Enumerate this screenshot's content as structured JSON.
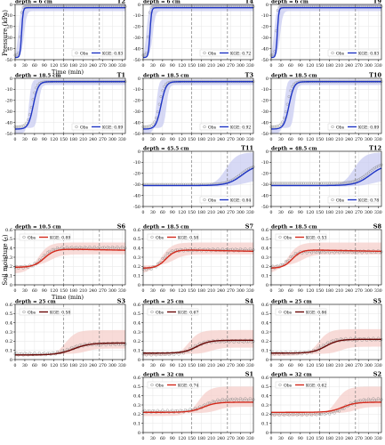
{
  "figure": {
    "pressure_ylabel": "Pressure (kPa)",
    "moisture_ylabel": "Soil moisture (-)",
    "xlabel": "Time (min)",
    "obs_label": "Obs",
    "pressure_line_color": "#1f35c4",
    "pressure_band_color": "#c9ccf2",
    "moisture_line_color": "#d42a1c",
    "moisture_dark_line_color": "#6b0a08",
    "moisture_band_color": "#f6cfcb",
    "obs_color": "#8c8c8c"
  },
  "chart_data": [
    {
      "type": "line",
      "id": "T2",
      "title": "T2",
      "depth": "depth = 6 cm",
      "kge": "KGE: 0.83",
      "line": "pressure",
      "xlim": [
        0,
        340
      ],
      "ylim": [
        -50,
        0
      ],
      "xticks": [
        0,
        30,
        60,
        90,
        120,
        150,
        180,
        210,
        240,
        270,
        300,
        330
      ],
      "yticks": [
        0,
        -10,
        -20,
        -30,
        -40,
        -50
      ],
      "vlines": [
        150,
        260
      ],
      "obs": {
        "start": -46,
        "end": -2,
        "t50": 16,
        "k": 0.5
      },
      "sim": {
        "start": -48,
        "end": -3,
        "t50": 20,
        "k": 0.45
      },
      "band": [
        {
          "start": -50,
          "end": 0,
          "t50": 10
        },
        {
          "start": -47,
          "end": -6,
          "t50": 28
        }
      ],
      "show_xticklabels": true,
      "show_xlabel": true,
      "show_ylabel": true
    },
    {
      "type": "line",
      "id": "T4",
      "title": "T4",
      "depth": "depth = 6 cm",
      "kge": "KGE: 0.72",
      "line": "pressure",
      "xlim": [
        0,
        340
      ],
      "ylim": [
        -50,
        0
      ],
      "xticks": [
        0,
        30,
        60,
        90,
        120,
        150,
        180,
        210,
        240,
        270,
        300,
        330
      ],
      "yticks": [
        0,
        -10,
        -20,
        -30,
        -40,
        -50
      ],
      "vlines": [
        150,
        260
      ],
      "obs": {
        "start": -46,
        "end": -2,
        "t50": 16,
        "k": 0.5
      },
      "sim": {
        "start": -48,
        "end": -3,
        "t50": 21,
        "k": 0.42
      },
      "band": [
        {
          "start": -50,
          "end": 0,
          "t50": 10
        },
        {
          "start": -47,
          "end": -6,
          "t50": 30
        }
      ],
      "show_xticklabels": false
    },
    {
      "type": "line",
      "id": "T9",
      "title": "T9",
      "depth": "depth = 6 cm",
      "kge": "KGE: 0.83",
      "line": "pressure",
      "xlim": [
        0,
        340
      ],
      "ylim": [
        -50,
        0
      ],
      "xticks": [
        0,
        30,
        60,
        90,
        120,
        150,
        180,
        210,
        240,
        270,
        300,
        330
      ],
      "yticks": [
        0,
        -10,
        -20,
        -30,
        -40,
        -50
      ],
      "vlines": [
        150,
        260
      ],
      "obs": {
        "start": -46,
        "end": -2,
        "t50": 15,
        "k": 0.5
      },
      "sim": {
        "start": -48,
        "end": -3,
        "t50": 19,
        "k": 0.45
      },
      "band": [
        {
          "start": -50,
          "end": 0,
          "t50": 9
        },
        {
          "start": -47,
          "end": -6,
          "t50": 28
        }
      ],
      "show_xticklabels": false
    },
    {
      "type": "line",
      "id": "T1",
      "title": "T1",
      "depth": "depth = 18.5 cm",
      "kge": "KGE: 0.89",
      "line": "pressure",
      "xlim": [
        0,
        340
      ],
      "ylim": [
        -50,
        0
      ],
      "xticks": [
        0,
        30,
        60,
        90,
        120,
        150,
        180,
        210,
        240,
        270,
        300,
        330
      ],
      "yticks": [
        0,
        -10,
        -20,
        -30,
        -40,
        -50
      ],
      "vlines": [
        150,
        260
      ],
      "obs": {
        "start": -44,
        "end": -3,
        "t50": 52,
        "k": 0.14
      },
      "sim": {
        "start": -46,
        "end": -3,
        "t50": 56,
        "k": 0.13
      },
      "band": [
        {
          "start": -50,
          "end": -1,
          "t50": 42
        },
        {
          "start": -45,
          "end": -6,
          "t50": 72
        }
      ],
      "show_xticklabels": false,
      "show_ylabel": false
    },
    {
      "type": "line",
      "id": "T3",
      "title": "T3",
      "depth": "depth = 18.5 cm",
      "kge": "KGE: 0.92",
      "line": "pressure",
      "xlim": [
        0,
        340
      ],
      "ylim": [
        -50,
        0
      ],
      "xticks": [
        0,
        30,
        60,
        90,
        120,
        150,
        180,
        210,
        240,
        270,
        300,
        330
      ],
      "yticks": [
        0,
        -10,
        -20,
        -30,
        -40,
        -50
      ],
      "vlines": [
        150,
        260
      ],
      "obs": {
        "start": -44,
        "end": -3,
        "t50": 50,
        "k": 0.14
      },
      "sim": {
        "start": -46,
        "end": -3,
        "t50": 55,
        "k": 0.13
      },
      "band": [
        {
          "start": -50,
          "end": -1,
          "t50": 40
        },
        {
          "start": -45,
          "end": -6,
          "t50": 72
        }
      ],
      "show_xticklabels": false
    },
    {
      "type": "line",
      "id": "T10",
      "title": "T10",
      "depth": "depth = 18.5 cm",
      "kge": "KGE: 0.89",
      "line": "pressure",
      "xlim": [
        0,
        340
      ],
      "ylim": [
        -50,
        0
      ],
      "xticks": [
        0,
        30,
        60,
        90,
        120,
        150,
        180,
        210,
        240,
        270,
        300,
        330
      ],
      "yticks": [
        0,
        -10,
        -20,
        -30,
        -40,
        -50
      ],
      "vlines": [
        150,
        260
      ],
      "obs": {
        "start": -44,
        "end": -3,
        "t50": 50,
        "k": 0.14
      },
      "sim": {
        "start": -46,
        "end": -3,
        "t50": 55,
        "k": 0.13
      },
      "band": [
        {
          "start": -50,
          "end": -1,
          "t50": 40
        },
        {
          "start": -45,
          "end": -6,
          "t50": 72
        }
      ],
      "show_xticklabels": false
    },
    {
      "type": "line",
      "id": "T11",
      "title": "T11",
      "depth": "depth = 45.5 cm",
      "kge": "KGE: 0.84",
      "line": "pressure",
      "xlim": [
        0,
        340
      ],
      "ylim": [
        -50,
        0
      ],
      "xticks": [
        0,
        30,
        60,
        90,
        120,
        150,
        180,
        210,
        240,
        270,
        300,
        330
      ],
      "yticks": [
        0,
        -10,
        -20,
        -30,
        -40,
        -50
      ],
      "vlines": [
        150,
        260
      ],
      "obs": {
        "start": -30,
        "end": -12,
        "t50": 300,
        "k": 0.05
      },
      "sim": {
        "start": -31,
        "end": -12,
        "t50": 305,
        "k": 0.045
      },
      "band": [
        {
          "start": -31,
          "end": -1,
          "t50": 255,
          "k": 0.06
        },
        {
          "start": -32,
          "end": -25,
          "t50": 320,
          "k": 0.04
        }
      ],
      "show_xticklabels": true
    },
    {
      "type": "line",
      "id": "T12",
      "title": "T12",
      "depth": "depth = 48.5 cm",
      "kge": "KGE: 0.78",
      "line": "pressure",
      "xlim": [
        0,
        340
      ],
      "ylim": [
        -50,
        0
      ],
      "xticks": [
        0,
        30,
        60,
        90,
        120,
        150,
        180,
        210,
        240,
        270,
        300,
        330
      ],
      "yticks": [
        0,
        -10,
        -20,
        -30,
        -40,
        -50
      ],
      "vlines": [
        150,
        260
      ],
      "obs": {
        "start": -29,
        "end": -10,
        "t50": 300,
        "k": 0.05
      },
      "sim": {
        "start": -31,
        "end": -12,
        "t50": 305,
        "k": 0.045
      },
      "band": [
        {
          "start": -31,
          "end": -1,
          "t50": 255,
          "k": 0.06
        },
        {
          "start": -32,
          "end": -25,
          "t50": 320,
          "k": 0.04
        }
      ],
      "show_xticklabels": true
    },
    {
      "type": "line",
      "id": "S6",
      "title": "S6",
      "depth": "depth = 10.5 cm",
      "kge": "KGE: 0.89",
      "line": "moisture",
      "xlim": [
        0,
        340
      ],
      "ylim": [
        0,
        0.6
      ],
      "xticks": [
        0,
        30,
        60,
        90,
        120,
        150,
        180,
        210,
        240,
        270,
        300,
        330
      ],
      "yticks": [
        0,
        0.1,
        0.2,
        0.3,
        0.4,
        0.5,
        0.6
      ],
      "vlines": [
        150,
        260
      ],
      "obs": {
        "start": 0.19,
        "end": 0.4,
        "t50": 85,
        "k": 0.07
      },
      "sim": {
        "start": 0.19,
        "end": 0.39,
        "t50": 90,
        "k": 0.06,
        "decay": 0.02
      },
      "band": [
        {
          "start": 0.12,
          "end": 0.46,
          "t50": 70
        },
        {
          "start": 0.21,
          "end": 0.33,
          "t50": 110
        }
      ],
      "show_xticklabels": true,
      "show_xlabel": true,
      "show_ylabel": true
    },
    {
      "type": "line",
      "id": "S7",
      "title": "S7",
      "depth": "depth = 18.5 cm",
      "kge": "KGE: 0.58",
      "line": "moisture",
      "xlim": [
        0,
        340
      ],
      "ylim": [
        0,
        0.6
      ],
      "xticks": [
        0,
        30,
        60,
        90,
        120,
        150,
        180,
        210,
        240,
        270,
        300,
        330
      ],
      "yticks": [
        0,
        0.1,
        0.2,
        0.3,
        0.4,
        0.5,
        0.6
      ],
      "vlines": [
        150,
        260
      ],
      "obs": {
        "start": 0.17,
        "end": 0.38,
        "t50": 60,
        "k": 0.08
      },
      "sim": {
        "start": 0.18,
        "end": 0.38,
        "t50": 70,
        "k": 0.07,
        "decay": 0.02
      },
      "band": [
        {
          "start": 0.12,
          "end": 0.46,
          "t50": 55
        },
        {
          "start": 0.21,
          "end": 0.33,
          "t50": 95
        }
      ],
      "show_xticklabels": false
    },
    {
      "type": "line",
      "id": "S8",
      "title": "S8",
      "depth": "depth = 18.5 cm",
      "kge": "KGE: 0.53",
      "line": "moisture",
      "xlim": [
        0,
        340
      ],
      "ylim": [
        0,
        0.6
      ],
      "xticks": [
        0,
        30,
        60,
        90,
        120,
        150,
        180,
        210,
        240,
        270,
        300,
        330
      ],
      "yticks": [
        0,
        0.1,
        0.2,
        0.3,
        0.4,
        0.5,
        0.6
      ],
      "vlines": [
        150,
        260
      ],
      "obs": {
        "start": 0.19,
        "end": 0.36,
        "t50": 55,
        "k": 0.08
      },
      "sim": {
        "start": 0.18,
        "end": 0.38,
        "t50": 65,
        "k": 0.07,
        "decay": 0.02
      },
      "band": [
        {
          "start": 0.12,
          "end": 0.46,
          "t50": 50
        },
        {
          "start": 0.21,
          "end": 0.33,
          "t50": 95
        }
      ],
      "show_xticklabels": false
    },
    {
      "type": "line",
      "id": "S3",
      "title": "S3",
      "depth": "depth = 25 cm",
      "kge": "KGE: 0.58",
      "line": "moisture-dark",
      "xlim": [
        0,
        340
      ],
      "ylim": [
        0,
        0.6
      ],
      "xticks": [
        0,
        30,
        60,
        90,
        120,
        150,
        180,
        210,
        240,
        270,
        300,
        330
      ],
      "yticks": [
        0,
        0.1,
        0.2,
        0.3,
        0.4,
        0.5,
        0.6
      ],
      "vlines": [
        150,
        260
      ],
      "obs": {
        "start": 0.06,
        "end": 0.17,
        "t50": 170,
        "k": 0.05
      },
      "sim": {
        "start": 0.05,
        "end": 0.18,
        "t50": 180,
        "k": 0.04
      },
      "band": [
        {
          "start": 0.04,
          "end": 0.32,
          "t50": 155
        },
        {
          "start": 0.06,
          "end": 0.12,
          "t50": 220
        }
      ],
      "show_xticklabels": false
    },
    {
      "type": "line",
      "id": "S4",
      "title": "S4",
      "depth": "depth = 25 cm",
      "kge": "KGE: 0.67",
      "line": "moisture-dark",
      "xlim": [
        0,
        340
      ],
      "ylim": [
        0,
        0.6
      ],
      "xticks": [
        0,
        30,
        60,
        90,
        120,
        150,
        180,
        210,
        240,
        270,
        300,
        330
      ],
      "yticks": [
        0,
        0.1,
        0.2,
        0.3,
        0.4,
        0.5,
        0.6
      ],
      "vlines": [
        150,
        260
      ],
      "obs": {
        "start": 0.06,
        "end": 0.2,
        "t50": 155,
        "k": 0.06
      },
      "sim": {
        "start": 0.07,
        "end": 0.21,
        "t50": 165,
        "k": 0.05
      },
      "band": [
        {
          "start": 0.04,
          "end": 0.32,
          "t50": 140
        },
        {
          "start": 0.06,
          "end": 0.13,
          "t50": 210
        }
      ],
      "show_xticklabels": false
    },
    {
      "type": "line",
      "id": "S5",
      "title": "S5",
      "depth": "depth = 25 cm",
      "kge": "KGE: 0.86",
      "line": "moisture-dark",
      "xlim": [
        0,
        340
      ],
      "ylim": [
        0,
        0.6
      ],
      "xticks": [
        0,
        30,
        60,
        90,
        120,
        150,
        180,
        210,
        240,
        270,
        300,
        330
      ],
      "yticks": [
        0,
        0.1,
        0.2,
        0.3,
        0.4,
        0.5,
        0.6
      ],
      "vlines": [
        150,
        260
      ],
      "obs": {
        "start": 0.07,
        "end": 0.22,
        "t50": 160,
        "k": 0.06
      },
      "sim": {
        "start": 0.07,
        "end": 0.22,
        "t50": 168,
        "k": 0.05
      },
      "band": [
        {
          "start": 0.04,
          "end": 0.33,
          "t50": 145
        },
        {
          "start": 0.06,
          "end": 0.14,
          "t50": 215
        }
      ],
      "show_xticklabels": false
    },
    {
      "type": "line",
      "id": "S1",
      "title": "S1",
      "depth": "depth = 32 cm",
      "kge": "KGE: 0.74",
      "line": "moisture",
      "xlim": [
        0,
        340
      ],
      "ylim": [
        0,
        0.6
      ],
      "xticks": [
        0,
        30,
        60,
        90,
        120,
        150,
        180,
        210,
        240,
        270,
        300,
        330
      ],
      "yticks": [
        0,
        0.1,
        0.2,
        0.3,
        0.4,
        0.5,
        0.6
      ],
      "vlines": [
        150,
        260
      ],
      "obs": {
        "start": 0.23,
        "end": 0.36,
        "t50": 190,
        "k": 0.05
      },
      "sim": {
        "start": 0.22,
        "end": 0.33,
        "t50": 185,
        "k": 0.05
      },
      "band": [
        {
          "start": 0.18,
          "end": 0.5,
          "t50": 170
        },
        {
          "start": 0.21,
          "end": 0.28,
          "t50": 230
        }
      ],
      "show_xticklabels": true
    },
    {
      "type": "line",
      "id": "S2",
      "title": "S2",
      "depth": "depth = 32 cm",
      "kge": "KGE: 0.62",
      "line": "moisture",
      "xlim": [
        0,
        340
      ],
      "ylim": [
        0,
        0.6
      ],
      "xticks": [
        0,
        30,
        60,
        90,
        120,
        150,
        180,
        210,
        240,
        270,
        300,
        330
      ],
      "yticks": [
        0,
        0.1,
        0.2,
        0.3,
        0.4,
        0.5,
        0.6
      ],
      "vlines": [
        150,
        260
      ],
      "obs": {
        "start": 0.2,
        "end": 0.36,
        "t50": 230,
        "k": 0.05
      },
      "sim": {
        "start": 0.22,
        "end": 0.33,
        "t50": 220,
        "k": 0.05
      },
      "band": [
        {
          "start": 0.18,
          "end": 0.5,
          "t50": 200
        },
        {
          "start": 0.21,
          "end": 0.28,
          "t50": 260
        }
      ],
      "show_xticklabels": true
    }
  ]
}
